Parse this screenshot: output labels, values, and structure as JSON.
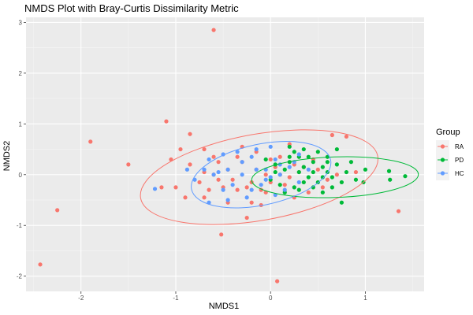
{
  "chart_data": {
    "type": "scatter",
    "title": "NMDS Plot with Bray-Curtis Dissimilarity Metric",
    "xlabel": "NMDS1",
    "ylabel": "NMDS2",
    "xlim": [
      -2.58,
      1.62
    ],
    "ylim": [
      -2.3,
      3.1
    ],
    "x_ticks": [
      "-2",
      "-1",
      "0",
      "1"
    ],
    "y_ticks": [
      "-2",
      "-1",
      "0",
      "1",
      "2",
      "3"
    ],
    "x_tick_values": [
      -2,
      -1,
      0,
      1
    ],
    "y_tick_values": [
      -2,
      -1,
      0,
      1,
      2,
      3
    ],
    "grid": true,
    "legend": {
      "title": "Group",
      "placement": "right"
    },
    "series": [
      {
        "name": "RA",
        "color": "#F8766D",
        "ellipse": {
          "cx": -0.12,
          "cy": -0.05,
          "rx": 1.27,
          "ry": 0.85,
          "angle_deg": 10
        },
        "points": [
          [
            -0.6,
            2.85
          ],
          [
            -1.1,
            1.05
          ],
          [
            -1.9,
            0.65
          ],
          [
            -1.5,
            0.2
          ],
          [
            -2.25,
            -0.7
          ],
          [
            -2.43,
            -1.77
          ],
          [
            -0.52,
            -1.18
          ],
          [
            0.07,
            -2.1
          ],
          [
            -0.25,
            -0.85
          ],
          [
            1.35,
            -0.72
          ],
          [
            -1.05,
            0.3
          ],
          [
            -0.85,
            0.8
          ],
          [
            -0.7,
            0.5
          ],
          [
            -0.6,
            0.35
          ],
          [
            -0.45,
            0.1
          ],
          [
            -0.3,
            0.25
          ],
          [
            -0.15,
            0.1
          ],
          [
            0.0,
            0.3
          ],
          [
            0.1,
            0.0
          ],
          [
            -0.35,
            -0.3
          ],
          [
            -0.5,
            -0.25
          ],
          [
            -0.6,
            0.0
          ],
          [
            -0.75,
            -0.15
          ],
          [
            -0.9,
            -0.45
          ],
          [
            -1.0,
            -0.25
          ],
          [
            -0.2,
            -0.55
          ],
          [
            -0.05,
            -0.35
          ],
          [
            0.15,
            -0.2
          ],
          [
            0.3,
            0.05
          ],
          [
            0.5,
            0.1
          ],
          [
            0.65,
            0.78
          ],
          [
            0.2,
            0.6
          ],
          [
            0.45,
            0.3
          ],
          [
            0.8,
            0.75
          ],
          [
            0.55,
            -0.25
          ],
          [
            0.25,
            -0.45
          ],
          [
            -0.1,
            -0.6
          ],
          [
            -0.45,
            -0.55
          ],
          [
            -0.3,
            0.55
          ],
          [
            -0.15,
            0.45
          ],
          [
            -0.65,
            -0.3
          ],
          [
            -0.85,
            0.2
          ],
          [
            -0.55,
            0.25
          ],
          [
            -0.4,
            -0.1
          ],
          [
            -0.25,
            -0.25
          ],
          [
            -0.05,
            0.0
          ],
          [
            0.05,
            0.15
          ],
          [
            0.2,
            -0.05
          ],
          [
            0.35,
            0.15
          ],
          [
            -0.95,
            0.5
          ],
          [
            -1.15,
            -0.25
          ],
          [
            -0.7,
            0.05
          ],
          [
            -0.2,
            -0.15
          ],
          [
            0.4,
            -0.35
          ],
          [
            0.6,
            -0.1
          ],
          [
            0.9,
            0.05
          ],
          [
            0.1,
            0.35
          ],
          [
            -0.35,
            0.35
          ],
          [
            -0.55,
            -0.1
          ],
          [
            0.25,
            0.2
          ],
          [
            -0.7,
            -0.45
          ],
          [
            0.0,
            -0.15
          ],
          [
            -0.1,
            -0.3
          ],
          [
            0.7,
            0.0
          ]
        ]
      },
      {
        "name": "PD",
        "color": "#00BA38",
        "ellipse": {
          "cx": 0.68,
          "cy": -0.05,
          "rx": 0.88,
          "ry": 0.4,
          "angle_deg": 2
        },
        "points": [
          [
            1.42,
            -0.03
          ],
          [
            1.25,
            0.07
          ],
          [
            1.26,
            -0.1
          ],
          [
            0.98,
            -0.15
          ],
          [
            0.75,
            -0.55
          ],
          [
            0.3,
            0.35
          ],
          [
            0.35,
            0.15
          ],
          [
            0.45,
            0.05
          ],
          [
            0.55,
            0.15
          ],
          [
            0.65,
            -0.05
          ],
          [
            0.8,
            0.05
          ],
          [
            0.9,
            -0.1
          ],
          [
            0.6,
            0.25
          ],
          [
            0.5,
            -0.15
          ],
          [
            0.4,
            -0.05
          ],
          [
            0.3,
            0.05
          ],
          [
            0.2,
            0.25
          ],
          [
            0.15,
            0.1
          ],
          [
            0.05,
            0.2
          ],
          [
            0.0,
            -0.1
          ],
          [
            0.1,
            -0.2
          ],
          [
            0.25,
            -0.25
          ],
          [
            0.45,
            -0.25
          ],
          [
            0.55,
            -0.35
          ],
          [
            0.7,
            0.2
          ],
          [
            0.75,
            -0.15
          ],
          [
            0.85,
            0.25
          ],
          [
            1.0,
            0.1
          ],
          [
            0.35,
            0.5
          ],
          [
            0.25,
            0.45
          ],
          [
            0.4,
            0.35
          ],
          [
            0.6,
            0.35
          ],
          [
            0.3,
            -0.3
          ],
          [
            0.15,
            -0.35
          ],
          [
            0.5,
            0.45
          ],
          [
            0.2,
            0.35
          ],
          [
            0.7,
            0.5
          ],
          [
            0.05,
            0.05
          ],
          [
            -0.05,
            0.3
          ],
          [
            0.45,
            0.25
          ],
          [
            0.35,
            -0.15
          ],
          [
            0.6,
            0.05
          ],
          [
            0.65,
            -0.25
          ],
          [
            0.2,
            0.55
          ],
          [
            0.55,
            -0.05
          ]
        ]
      },
      {
        "name": "HC",
        "color": "#619CFF",
        "ellipse": {
          "cx": -0.1,
          "cy": 0.0,
          "rx": 0.75,
          "ry": 0.6,
          "angle_deg": 12
        },
        "points": [
          [
            -1.22,
            -0.28
          ],
          [
            -0.88,
            0.1
          ],
          [
            -0.65,
            -0.55
          ],
          [
            -0.45,
            -0.5
          ],
          [
            -0.5,
            0.4
          ],
          [
            -0.45,
            0.1
          ],
          [
            -0.3,
            0.25
          ],
          [
            -0.15,
            0.5
          ],
          [
            0.0,
            0.55
          ],
          [
            0.05,
            0.3
          ],
          [
            0.1,
            0.0
          ],
          [
            -0.05,
            -0.1
          ],
          [
            -0.15,
            0.1
          ],
          [
            -0.3,
            0.0
          ],
          [
            -0.55,
            0.05
          ],
          [
            -0.7,
            0.1
          ],
          [
            -0.6,
            0.0
          ],
          [
            -0.2,
            -0.3
          ],
          [
            -0.1,
            -0.2
          ],
          [
            0.15,
            -0.3
          ],
          [
            0.3,
            -0.15
          ],
          [
            0.4,
            0.1
          ],
          [
            0.25,
            0.25
          ],
          [
            -0.35,
            0.45
          ],
          [
            -0.25,
            -0.45
          ],
          [
            0.05,
            -0.4
          ],
          [
            -0.4,
            -0.2
          ],
          [
            -0.8,
            -0.1
          ],
          [
            -0.2,
            0.35
          ],
          [
            0.2,
            0.15
          ],
          [
            -0.05,
            0.1
          ],
          [
            0.3,
            0.4
          ],
          [
            -0.65,
            0.3
          ],
          [
            0.1,
            0.2
          ],
          [
            -0.5,
            -0.3
          ],
          [
            0.0,
            -0.05
          ]
        ]
      }
    ]
  }
}
